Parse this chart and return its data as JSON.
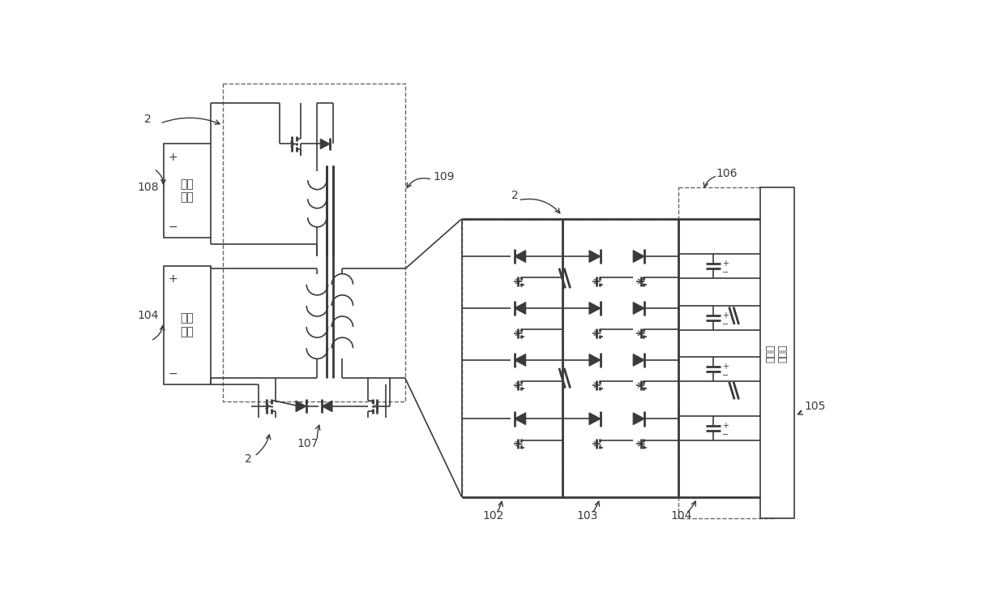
{
  "bg": "#ffffff",
  "lc": "#3a3a3a",
  "tc": "#3a3a3a",
  "fw": 12.4,
  "fh": 7.41,
  "ext_power": "外部\n电源",
  "battery": "电池\n模块",
  "voltage": "电压采\n集模块",
  "lbl_2a": "2",
  "lbl_108": "108",
  "lbl_104a": "104",
  "lbl_109": "109",
  "lbl_107": "107",
  "lbl_2b": "2",
  "lbl_2c": "2",
  "lbl_102": "102",
  "lbl_103": "103",
  "lbl_104b": "104",
  "lbl_105": "105",
  "lbl_106": "106"
}
